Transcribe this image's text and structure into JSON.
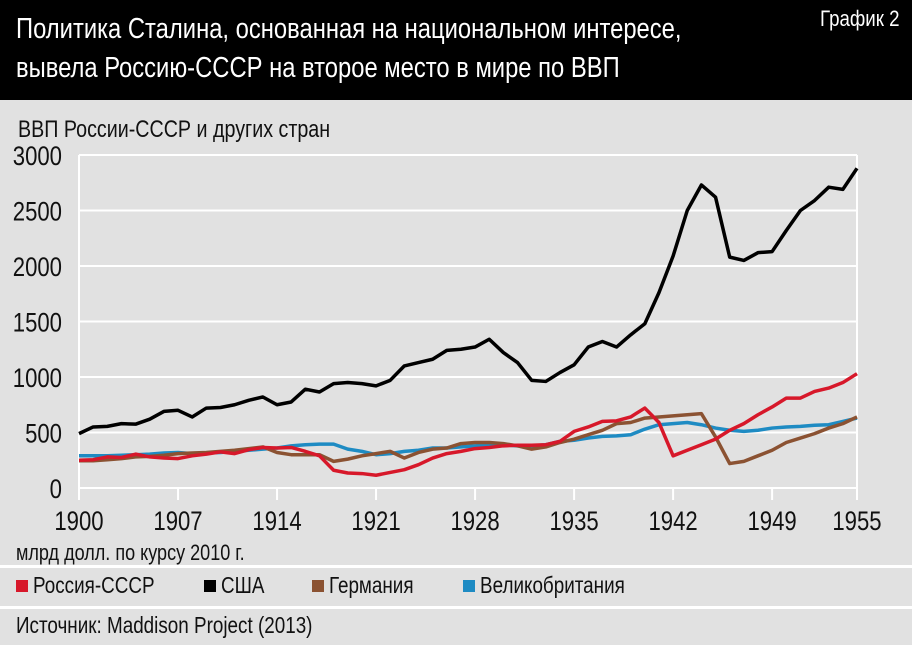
{
  "header": {
    "title_line1": "Политика Сталина, основанная на национальном интересе,",
    "title_line2": "вывела Россию-СССР на второе место в мире по ВВП",
    "label": "График 2"
  },
  "footer": {
    "source": "Источник: Maddison Project (2013)"
  },
  "chart_data": {
    "type": "line",
    "title": "ВВП России-СССР и других стран",
    "ylabel": "млрд долл. по курсу 2010 г.",
    "ylim": [
      0,
      3000
    ],
    "yticks": [
      "0",
      "500",
      "1000",
      "1500",
      "2000",
      "2500",
      "3000"
    ],
    "xlim": [
      1900,
      1955
    ],
    "xticks": [
      "1900",
      "1907",
      "1914",
      "1921",
      "1928",
      "1935",
      "1942",
      "1949",
      "1955"
    ],
    "grid": true,
    "legend_position": "bottom",
    "x_start": 1900,
    "series": [
      {
        "name": "Россия-СССР",
        "color": "#d7182a",
        "values": [
          250,
          255,
          280,
          275,
          305,
          280,
          270,
          265,
          290,
          305,
          325,
          310,
          345,
          365,
          360,
          365,
          330,
          290,
          160,
          135,
          130,
          115,
          140,
          165,
          210,
          270,
          310,
          330,
          355,
          365,
          380,
          385,
          385,
          390,
          420,
          510,
          550,
          600,
          605,
          640,
          720,
          590,
          290,
          340,
          390,
          440,
          520,
          580,
          660,
          730,
          810,
          810,
          870,
          900,
          950,
          1030
        ]
      },
      {
        "name": "США",
        "color": "#000000",
        "values": [
          490,
          550,
          555,
          580,
          575,
          620,
          690,
          700,
          640,
          720,
          725,
          750,
          790,
          820,
          750,
          775,
          890,
          865,
          940,
          950,
          940,
          920,
          970,
          1100,
          1130,
          1160,
          1240,
          1250,
          1270,
          1340,
          1220,
          1130,
          970,
          960,
          1040,
          1110,
          1270,
          1320,
          1270,
          1380,
          1480,
          1760,
          2090,
          2500,
          2730,
          2620,
          2080,
          2050,
          2120,
          2130,
          2320,
          2500,
          2590,
          2710,
          2690,
          2880
        ]
      },
      {
        "name": "Германия",
        "color": "#8b5232",
        "values": [
          245,
          245,
          255,
          265,
          280,
          285,
          295,
          310,
          315,
          320,
          330,
          340,
          355,
          370,
          320,
          300,
          300,
          300,
          240,
          260,
          290,
          310,
          330,
          270,
          320,
          350,
          360,
          400,
          410,
          410,
          400,
          380,
          350,
          370,
          410,
          440,
          480,
          520,
          580,
          590,
          630,
          640,
          650,
          660,
          670,
          460,
          220,
          240,
          290,
          340,
          410,
          450,
          490,
          540,
          580,
          640
        ]
      },
      {
        "name": "Великобритания",
        "color": "#1e8bc3",
        "values": [
          290,
          290,
          290,
          295,
          300,
          305,
          315,
          320,
          310,
          315,
          320,
          330,
          340,
          350,
          360,
          380,
          390,
          395,
          395,
          350,
          330,
          300,
          310,
          330,
          340,
          360,
          360,
          370,
          380,
          390,
          390,
          380,
          380,
          390,
          420,
          430,
          450,
          465,
          470,
          480,
          530,
          570,
          580,
          590,
          570,
          540,
          520,
          510,
          520,
          540,
          550,
          555,
          565,
          570,
          600,
          630
        ]
      }
    ]
  }
}
